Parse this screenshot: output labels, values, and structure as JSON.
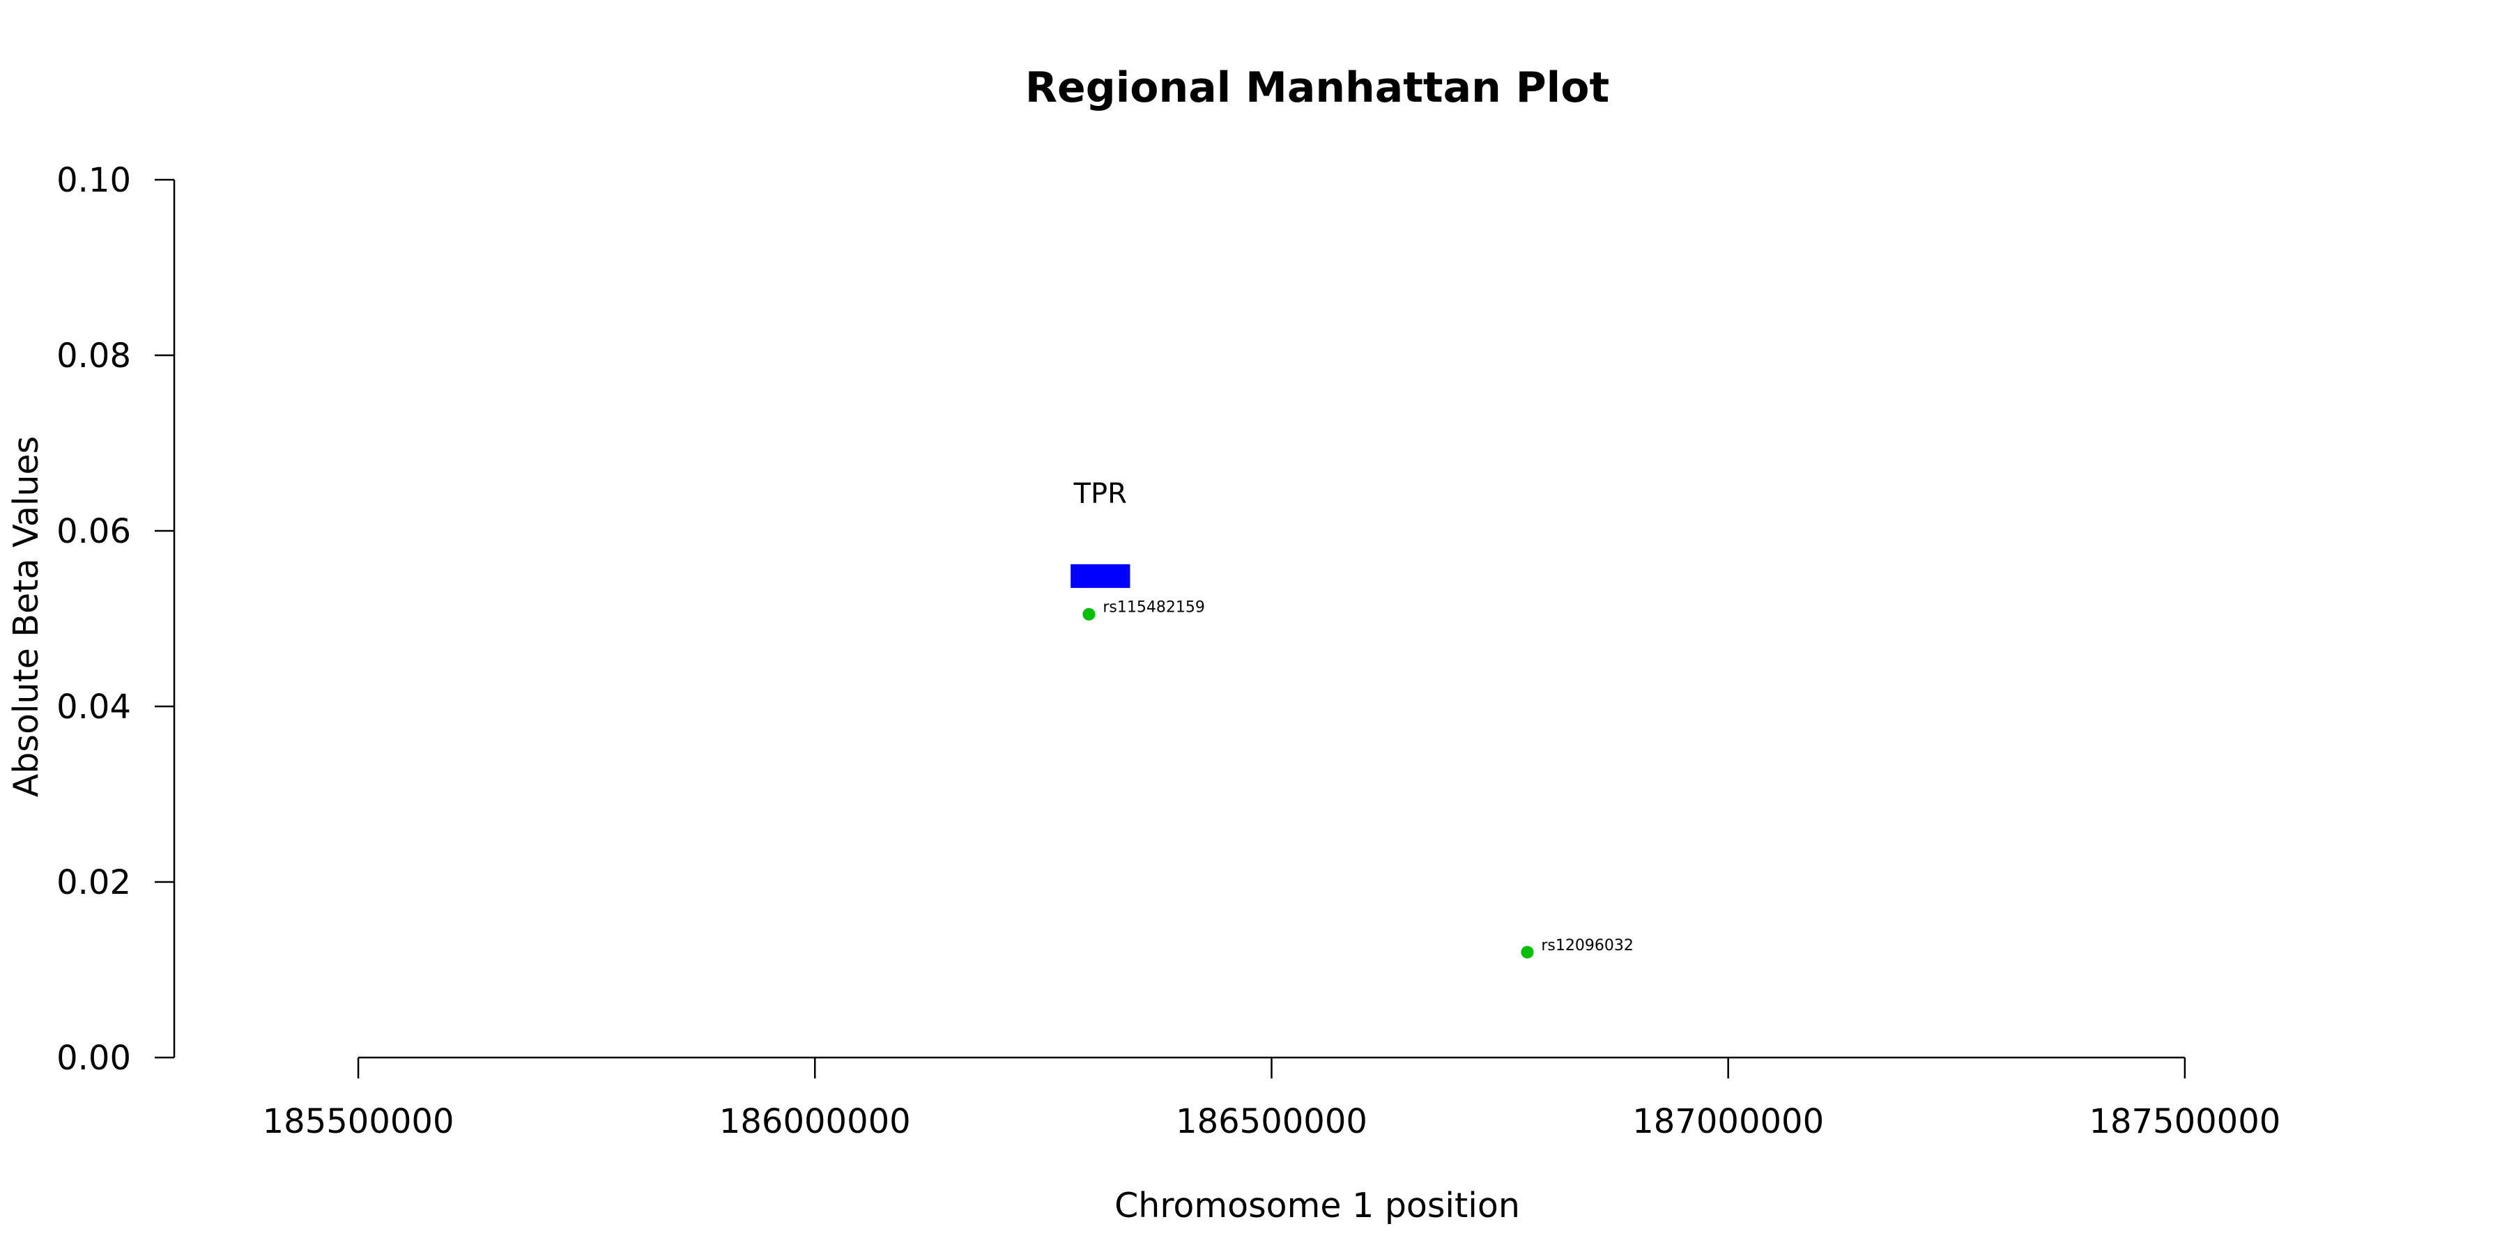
{
  "chart_data": {
    "type": "scatter",
    "title": "Regional Manhattan Plot",
    "xlabel": "Chromosome 1 position",
    "ylabel": "Absolute Beta Values",
    "xlim": [
      185300000,
      187800000
    ],
    "ylim": [
      0,
      0.1
    ],
    "xticks": [
      185500000,
      186000000,
      186500000,
      187000000,
      187500000
    ],
    "xtick_labels": [
      "185500000",
      "186000000",
      "186500000",
      "187000000",
      "187500000"
    ],
    "yticks": [
      0,
      0.02,
      0.04,
      0.06,
      0.08,
      0.1
    ],
    "ytick_labels": [
      "0.00",
      "0.02",
      "0.04",
      "0.06",
      "0.08",
      "0.10"
    ],
    "grid": false,
    "points": [
      {
        "label": "rs115482159",
        "x": 186300000,
        "y": 0.0505,
        "color": "#00c000"
      },
      {
        "label": "rs12096032",
        "x": 186780000,
        "y": 0.012,
        "color": "#00c000"
      }
    ],
    "genes": [
      {
        "name": "TPR",
        "start": 186280000,
        "end": 186345000,
        "y_low": 0.0535,
        "y_high": 0.0562,
        "color": "#0000ff"
      }
    ]
  }
}
